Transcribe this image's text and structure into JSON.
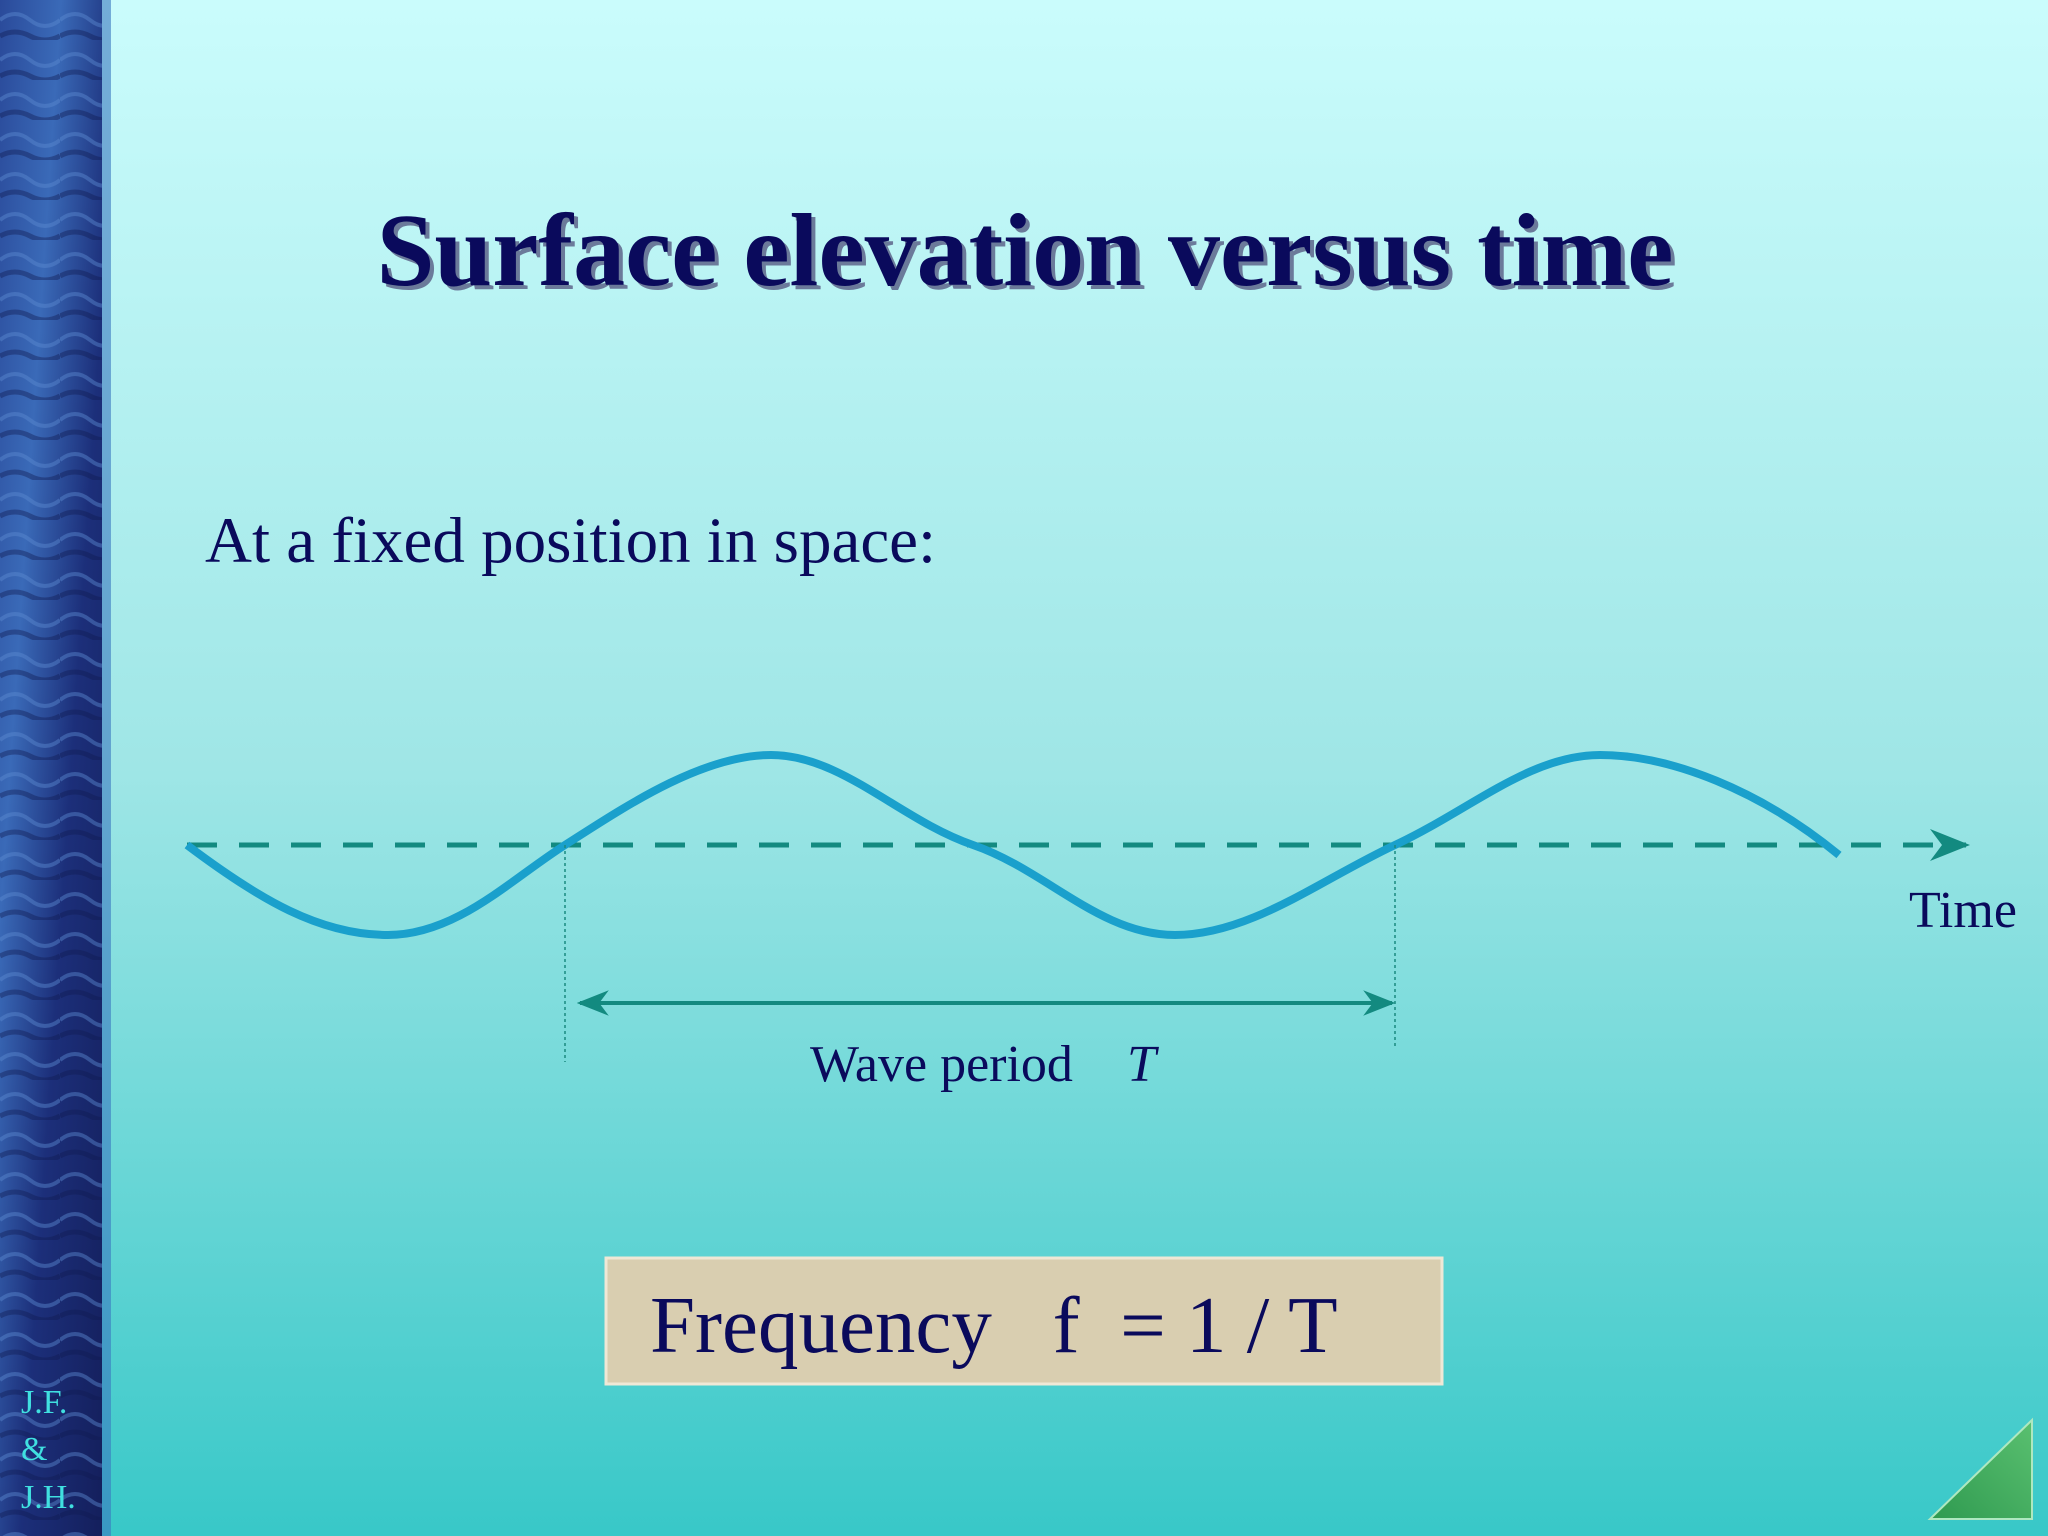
{
  "title": "Surface elevation versus time",
  "subtitle": "At a fixed position in space:",
  "diagram": {
    "axis_label": "Time",
    "period_label": "Wave period",
    "period_symbol": "T"
  },
  "formula": "Frequency   f  = 1 / T",
  "footer": [
    "J.F.",
    "&",
    "J.H."
  ]
}
